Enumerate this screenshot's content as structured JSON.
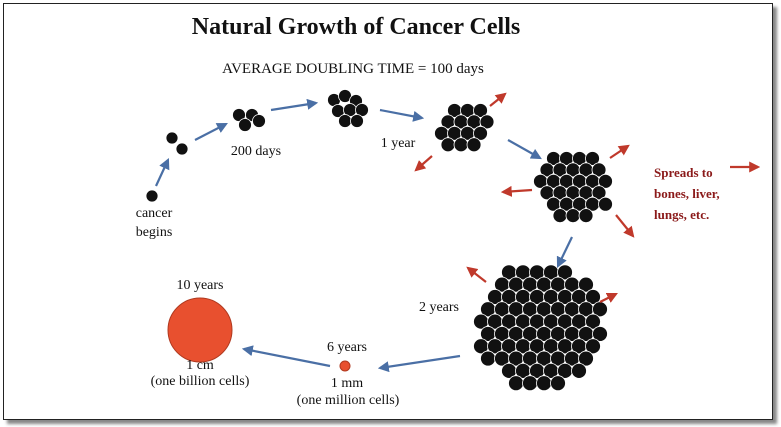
{
  "title": "Natural Growth of Cancer Cells",
  "subtitle": "AVERAGE DOUBLING TIME = 100 days",
  "labels": {
    "begins_line1": "cancer",
    "begins_line2": "begins",
    "days200": "200 days",
    "year1": "1 year",
    "years2": "2 years",
    "years6": "6 years",
    "mm1": "1 mm",
    "million": "(one million cells)",
    "years10": "10 years",
    "cm1": "1 cm",
    "billion": "(one billion cells)",
    "spreads": "Spreads to\nbones, liver,\nlungs, etc."
  },
  "colors": {
    "cell": "#111111",
    "growth_arrow": "#4a6fa5",
    "spread_arrow": "#c0392b",
    "tumor": "#e8502f",
    "spread_text": "#8b1a1a"
  }
}
